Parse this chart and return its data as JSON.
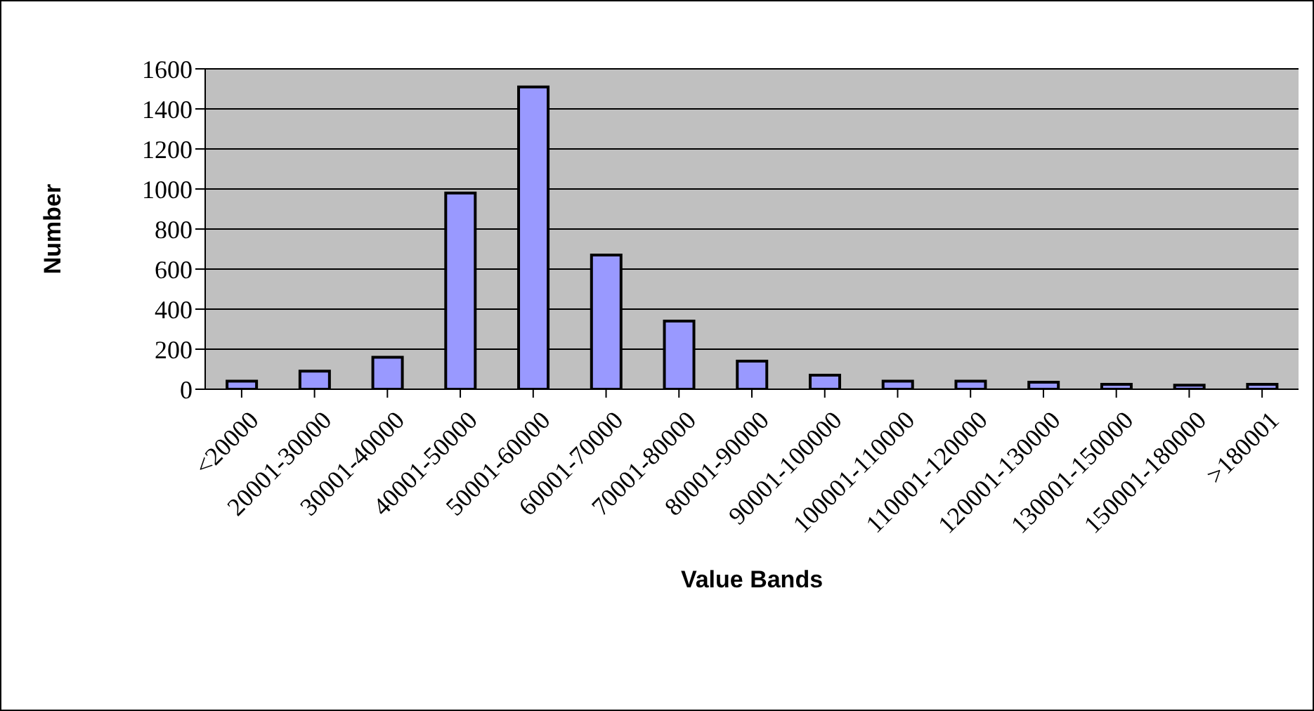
{
  "chart_data": {
    "type": "bar",
    "xlabel": "Value Bands",
    "ylabel": "Number",
    "categories": [
      "<20000",
      "20001-30000",
      "30001-40000",
      "40001-50000",
      "50001-60000",
      "60001-70000",
      "70001-80000",
      "80001-90000",
      "90001-100000",
      "100001-110000",
      "110001-120000",
      "120001-130000",
      "130001-150000",
      "150001-180000",
      ">180001"
    ],
    "values": [
      40,
      90,
      160,
      980,
      1510,
      670,
      340,
      140,
      70,
      40,
      40,
      35,
      25,
      20,
      25
    ],
    "color": "#9999ff",
    "ylim": [
      0,
      1600
    ],
    "yticks": [
      0,
      200,
      400,
      600,
      800,
      1000,
      1200,
      1400,
      1600
    ],
    "grid": "y"
  }
}
